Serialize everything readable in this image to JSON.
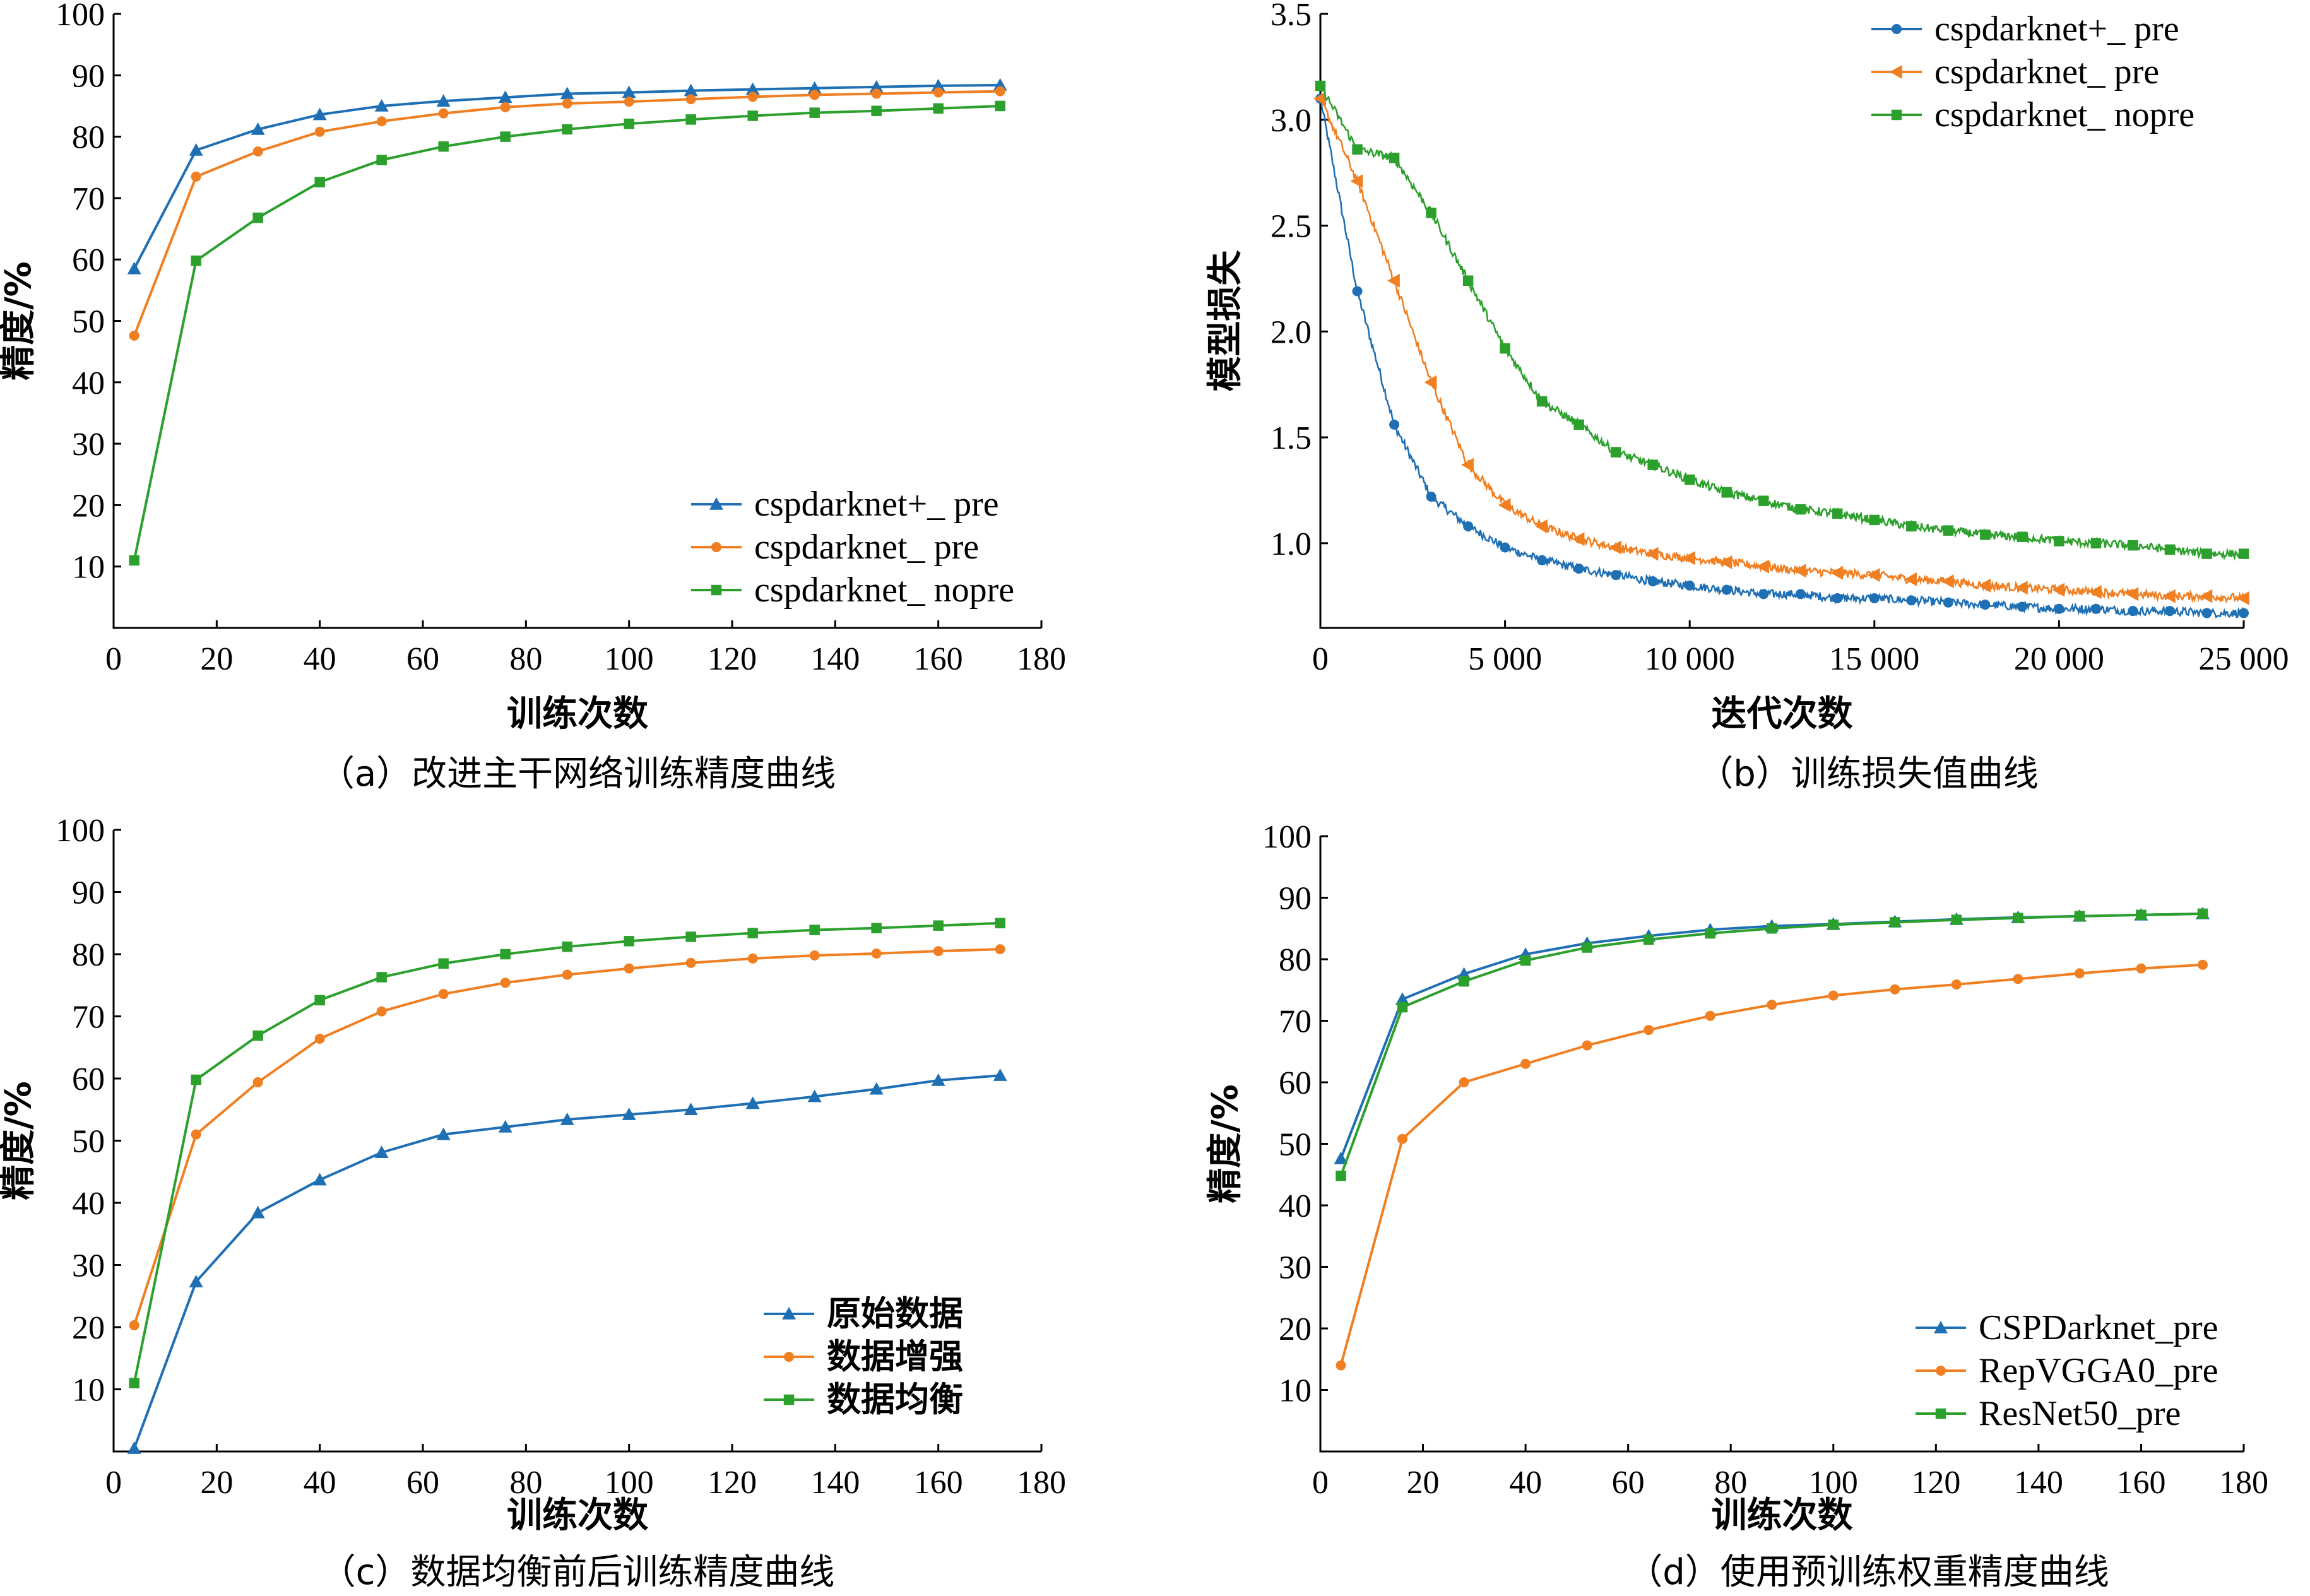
{
  "figure": {
    "panels": [
      {
        "id": "a",
        "caption": "（a）改进主干网络训练精度曲线",
        "legend_position": "bottom-right",
        "legend_cjk": false
      },
      {
        "id": "b",
        "caption": "（b）训练损失值曲线",
        "legend_position": "top-right",
        "legend_cjk": false
      },
      {
        "id": "c",
        "caption": "（c）数据均衡前后训练精度曲线",
        "legend_position": "bottom-right",
        "legend_cjk": true
      },
      {
        "id": "d",
        "caption": "（d）使用预训练权重精度曲线",
        "legend_position": "bottom-right",
        "legend_cjk": false
      }
    ]
  },
  "chart_data": [
    {
      "type": "line",
      "xlabel": "训练次数",
      "ylabel": "精度/%",
      "xlim": [
        0,
        180
      ],
      "ylim": [
        0,
        100
      ],
      "xticks": [
        "0",
        "20",
        "40",
        "60",
        "80",
        "100",
        "120",
        "140",
        "160",
        "180"
      ],
      "yticks": [
        "10",
        "20",
        "30",
        "40",
        "50",
        "60",
        "70",
        "80",
        "90",
        "100"
      ],
      "grid": false,
      "legend": "bottom-right",
      "x": [
        4,
        16,
        28,
        40,
        52,
        64,
        76,
        88,
        100,
        112,
        124,
        136,
        148,
        160,
        172
      ],
      "series": [
        {
          "name": "cspdarknet+_ pre",
          "color": "#1f6fb4",
          "marker": "triangle",
          "values": [
            58.5,
            77.8,
            81.2,
            83.6,
            85.0,
            85.8,
            86.4,
            87.0,
            87.2,
            87.5,
            87.7,
            87.9,
            88.1,
            88.3,
            88.4
          ]
        },
        {
          "name": "cspdarknet_ pre",
          "color": "#f07f22",
          "marker": "circle",
          "values": [
            47.6,
            73.5,
            77.6,
            80.8,
            82.5,
            83.8,
            84.8,
            85.4,
            85.7,
            86.1,
            86.5,
            86.8,
            87.0,
            87.2,
            87.4
          ]
        },
        {
          "name": "cspdarknet_ nopre",
          "color": "#2ca02c",
          "marker": "square",
          "values": [
            11.0,
            59.8,
            66.8,
            72.6,
            76.2,
            78.4,
            80.0,
            81.2,
            82.1,
            82.8,
            83.4,
            83.9,
            84.2,
            84.6,
            85.0
          ]
        }
      ]
    },
    {
      "type": "line",
      "xlabel": "迭代次数",
      "ylabel": "模型损失",
      "xlim": [
        0,
        25000
      ],
      "ylim": [
        0.6,
        3.5
      ],
      "xticks": [
        "0",
        "5 000",
        "10 000",
        "15 000",
        "20 000",
        "25 000"
      ],
      "yticks": [
        "1.0",
        "1.5",
        "2.0",
        "2.5",
        "3.0",
        "3.5"
      ],
      "grid": false,
      "legend": "top-right",
      "series": [
        {
          "name": "cspdarknet+_ pre",
          "color": "#1f6fb4",
          "marker": "circle",
          "x": [
            0,
            1000,
            2000,
            3000,
            4000,
            5000,
            6000,
            7000,
            8000,
            9000,
            10000,
            11000,
            12000,
            13000,
            14000,
            15000,
            16000,
            17000,
            18000,
            19000,
            20000,
            21000,
            22000,
            23000,
            24000,
            25000
          ],
          "values": [
            3.1,
            2.19,
            1.56,
            1.22,
            1.08,
            0.98,
            0.92,
            0.88,
            0.85,
            0.82,
            0.8,
            0.78,
            0.76,
            0.76,
            0.74,
            0.74,
            0.73,
            0.72,
            0.71,
            0.7,
            0.69,
            0.69,
            0.68,
            0.68,
            0.67,
            0.67
          ]
        },
        {
          "name": "cspdarknet_ pre",
          "color": "#f07f22",
          "marker": "triangle-left",
          "x": [
            0,
            1000,
            2000,
            3000,
            4000,
            5000,
            6000,
            7000,
            8000,
            9000,
            10000,
            11000,
            12000,
            13000,
            14000,
            15000,
            16000,
            17000,
            18000,
            19000,
            20000,
            21000,
            22000,
            23000,
            24000,
            25000
          ],
          "values": [
            3.1,
            2.71,
            2.24,
            1.76,
            1.37,
            1.18,
            1.08,
            1.02,
            0.98,
            0.95,
            0.93,
            0.91,
            0.89,
            0.87,
            0.86,
            0.85,
            0.83,
            0.82,
            0.8,
            0.79,
            0.78,
            0.77,
            0.76,
            0.75,
            0.75,
            0.74
          ]
        },
        {
          "name": "cspdarknet_ nopre",
          "color": "#2ca02c",
          "marker": "square",
          "x": [
            0,
            1000,
            2000,
            3000,
            4000,
            5000,
            6000,
            7000,
            8000,
            9000,
            10000,
            11000,
            12000,
            13000,
            14000,
            15000,
            16000,
            17000,
            18000,
            19000,
            20000,
            21000,
            22000,
            23000,
            24000,
            25000
          ],
          "values": [
            3.16,
            2.86,
            2.82,
            2.56,
            2.24,
            1.92,
            1.67,
            1.56,
            1.43,
            1.37,
            1.3,
            1.24,
            1.2,
            1.16,
            1.14,
            1.11,
            1.08,
            1.06,
            1.04,
            1.03,
            1.01,
            1.0,
            0.99,
            0.97,
            0.95,
            0.95
          ]
        }
      ]
    },
    {
      "type": "line",
      "xlabel": "训练次数",
      "ylabel": "精度/%",
      "xlim": [
        0,
        180
      ],
      "ylim": [
        0,
        100
      ],
      "xticks": [
        "0",
        "20",
        "40",
        "60",
        "80",
        "100",
        "120",
        "140",
        "160",
        "180"
      ],
      "yticks": [
        "10",
        "20",
        "30",
        "40",
        "50",
        "60",
        "70",
        "80",
        "90",
        "100"
      ],
      "grid": false,
      "legend": "bottom-right",
      "x": [
        4,
        16,
        28,
        40,
        52,
        64,
        76,
        88,
        100,
        112,
        124,
        136,
        148,
        160,
        172
      ],
      "series": [
        {
          "name": "原始数据",
          "color": "#1f6fb4",
          "marker": "triangle",
          "values": [
            0.5,
            27.3,
            38.4,
            43.7,
            48.1,
            51.0,
            52.2,
            53.4,
            54.2,
            55.0,
            56.0,
            57.1,
            58.3,
            59.7,
            60.5
          ]
        },
        {
          "name": "数据增强",
          "color": "#f07f22",
          "marker": "circle",
          "values": [
            20.3,
            51.0,
            59.4,
            66.4,
            70.8,
            73.6,
            75.4,
            76.7,
            77.7,
            78.6,
            79.3,
            79.8,
            80.1,
            80.5,
            80.8
          ]
        },
        {
          "name": "数据均衡",
          "color": "#2ca02c",
          "marker": "square",
          "values": [
            11.0,
            59.8,
            66.9,
            72.6,
            76.3,
            78.5,
            80.0,
            81.2,
            82.1,
            82.8,
            83.4,
            83.9,
            84.2,
            84.6,
            85.0
          ]
        }
      ]
    },
    {
      "type": "line",
      "xlabel": "训练次数",
      "ylabel": "精度/%",
      "xlim": [
        0,
        180
      ],
      "ylim": [
        0,
        100
      ],
      "xticks": [
        "0",
        "20",
        "40",
        "60",
        "80",
        "100",
        "120",
        "140",
        "160",
        "180"
      ],
      "yticks": [
        "10",
        "20",
        "30",
        "40",
        "50",
        "60",
        "70",
        "80",
        "90",
        "100"
      ],
      "grid": false,
      "legend": "bottom-right",
      "x": [
        4,
        16,
        28,
        40,
        52,
        64,
        76,
        88,
        100,
        112,
        124,
        136,
        148,
        160,
        172
      ],
      "series": [
        {
          "name": "CSPDarknet_pre",
          "color": "#1f6fb4",
          "marker": "triangle",
          "values": [
            47.6,
            73.5,
            77.6,
            80.8,
            82.6,
            83.8,
            84.8,
            85.4,
            85.7,
            86.1,
            86.5,
            86.8,
            87.0,
            87.2,
            87.4
          ]
        },
        {
          "name": "RepVGGA0_pre",
          "color": "#f07f22",
          "marker": "circle",
          "values": [
            14.0,
            50.8,
            60.0,
            63.0,
            66.0,
            68.5,
            70.8,
            72.6,
            74.1,
            75.1,
            75.9,
            76.8,
            77.7,
            78.5,
            79.1
          ]
        },
        {
          "name": "ResNet50_pre",
          "color": "#2ca02c",
          "marker": "square",
          "values": [
            44.8,
            72.2,
            76.4,
            79.8,
            81.9,
            83.2,
            84.2,
            85.0,
            85.6,
            86.0,
            86.4,
            86.7,
            87.0,
            87.2,
            87.4
          ]
        }
      ]
    }
  ]
}
